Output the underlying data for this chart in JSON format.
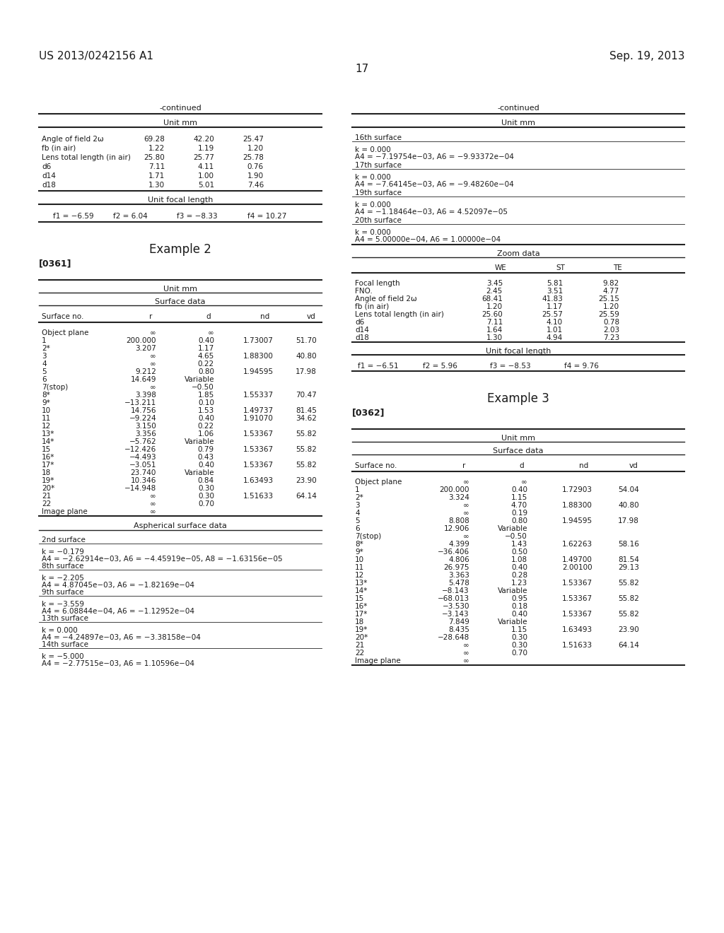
{
  "page_header_left": "US 2013/0242156 A1",
  "page_header_right": "Sep. 19, 2013",
  "page_number": "17",
  "background_color": "#ffffff",
  "text_color": "#1a1a1a",
  "left_continued_rows": [
    [
      "Angle of field 2ω",
      "69.28",
      "42.20",
      "25.47"
    ],
    [
      "fb (in air)",
      "1.22",
      "1.19",
      "1.20"
    ],
    [
      "Lens total length (in air)",
      "25.80",
      "25.77",
      "25.78"
    ],
    [
      "d6",
      "7.11",
      "4.11",
      "0.76"
    ],
    [
      "d14",
      "1.71",
      "1.00",
      "1.90"
    ],
    [
      "d18",
      "1.30",
      "5.01",
      "7.46"
    ]
  ],
  "left_focal_row": "f1 = −6.59       f2 = 6.04       f3 = −8.33       f4 = 10.27",
  "left_surface_rows": [
    [
      "Object plane",
      "∞",
      "∞",
      "",
      ""
    ],
    [
      "1",
      "200.000",
      "0.40",
      "1.73007",
      "51.70"
    ],
    [
      "2*",
      "3.207",
      "1.17",
      "",
      ""
    ],
    [
      "3",
      "∞",
      "4.65",
      "1.88300",
      "40.80"
    ],
    [
      "4",
      "∞",
      "0.22",
      "",
      ""
    ],
    [
      "5",
      "9.212",
      "0.80",
      "1.94595",
      "17.98"
    ],
    [
      "6",
      "14.649",
      "Variable",
      "",
      ""
    ],
    [
      "7(stop)",
      "∞",
      "−0.50",
      "",
      ""
    ],
    [
      "8*",
      "3.398",
      "1.85",
      "1.55337",
      "70.47"
    ],
    [
      "9*",
      "−13.211",
      "0.10",
      "",
      ""
    ],
    [
      "10",
      "14.756",
      "1.53",
      "1.49737",
      "81.45"
    ],
    [
      "11",
      "−9.224",
      "0.40",
      "1.91070",
      "34.62"
    ],
    [
      "12",
      "3.150",
      "0.22",
      "",
      ""
    ],
    [
      "13*",
      "3.356",
      "1.06",
      "1.53367",
      "55.82"
    ],
    [
      "14*",
      "−5.762",
      "Variable",
      "",
      ""
    ],
    [
      "15",
      "−12.426",
      "0.79",
      "1.53367",
      "55.82"
    ],
    [
      "16*",
      "−4.493",
      "0.43",
      "",
      ""
    ],
    [
      "17*",
      "−3.051",
      "0.40",
      "1.53367",
      "55.82"
    ],
    [
      "18",
      "23.740",
      "Variable",
      "",
      ""
    ],
    [
      "19*",
      "10.346",
      "0.84",
      "1.63493",
      "23.90"
    ],
    [
      "20*",
      "−14.948",
      "0.30",
      "",
      ""
    ],
    [
      "21",
      "∞",
      "0.30",
      "1.51633",
      "64.14"
    ],
    [
      "22",
      "∞",
      "0.70",
      "",
      ""
    ],
    [
      "Image plane",
      "∞",
      "",
      "",
      ""
    ]
  ],
  "left_asph_entries": [
    {
      "surface": "2nd surface",
      "lines": [
        "k = −0.179",
        "A4 = −2.62914e−03, A6 = −4.45919e−05, A8 = −1.63156e−05"
      ]
    },
    {
      "surface": "8th surface",
      "lines": [
        "k = −2.205",
        "A4 = 4.87045e−03, A6 = −1.82169e−04"
      ]
    },
    {
      "surface": "9th surface",
      "lines": [
        "k = −3.559",
        "A4 = 6.08844e−04, A6 = −1.12952e−04"
      ]
    },
    {
      "surface": "13th surface",
      "lines": [
        "k = 0.000",
        "A4 = −4.24897e−03, A6 = −3.38158e−04"
      ]
    },
    {
      "surface": "14th surface",
      "lines": [
        "k = −5.000",
        "A4 = −2.77515e−03, A6 = 1.10596e−04"
      ]
    }
  ],
  "right_asph_entries": [
    {
      "surface": "16th surface",
      "lines": [
        "k = 0.000",
        "A4 = −7.19754e−03, A6 = −9.93372e−04"
      ]
    },
    {
      "surface": "17th surface",
      "lines": [
        "k = 0.000",
        "A4 = −7.64145e−03, A6 = −9.48260e−04"
      ]
    },
    {
      "surface": "19th surface",
      "lines": [
        "k = 0.000",
        "A4 = −1.18464e−03, A6 = 4.52097e−05"
      ]
    },
    {
      "surface": "20th surface",
      "lines": [
        "k = 0.000",
        "A4 = 5.00000e−04, A6 = 1.00000e−04"
      ]
    }
  ],
  "zoom_rows": [
    [
      "Focal length",
      "3.45",
      "5.81",
      "9.82"
    ],
    [
      "FNO.",
      "2.45",
      "3.51",
      "4.77"
    ],
    [
      "Angle of field 2ω",
      "68.41",
      "41.83",
      "25.15"
    ],
    [
      "fb (in air)",
      "1.20",
      "1.17",
      "1.20"
    ],
    [
      "Lens total length (in air)",
      "25.60",
      "25.57",
      "25.59"
    ],
    [
      "d6",
      "7.11",
      "4.10",
      "0.78"
    ],
    [
      "d14",
      "1.64",
      "1.01",
      "2.03"
    ],
    [
      "d18",
      "1.30",
      "4.94",
      "7.23"
    ]
  ],
  "right_focal_row": "f1 = −6.51       f2 = 5.96       f3 = −8.53       f4 = 9.76",
  "right_surface_rows": [
    [
      "Object plane",
      "∞",
      "∞",
      "",
      ""
    ],
    [
      "1",
      "200.000",
      "0.40",
      "1.72903",
      "54.04"
    ],
    [
      "2*",
      "3.324",
      "1.15",
      "",
      ""
    ],
    [
      "3",
      "∞",
      "4.70",
      "1.88300",
      "40.80"
    ],
    [
      "4",
      "∞",
      "0.19",
      "",
      ""
    ],
    [
      "5",
      "8.808",
      "0.80",
      "1.94595",
      "17.98"
    ],
    [
      "6",
      "12.906",
      "Variable",
      "",
      ""
    ],
    [
      "7(stop)",
      "∞",
      "−0.50",
      "",
      ""
    ],
    [
      "8*",
      "4.399",
      "1.43",
      "1.62263",
      "58.16"
    ],
    [
      "9*",
      "−36.406",
      "0.50",
      "",
      ""
    ],
    [
      "10",
      "4.806",
      "1.08",
      "1.49700",
      "81.54"
    ],
    [
      "11",
      "26.975",
      "0.40",
      "2.00100",
      "29.13"
    ],
    [
      "12",
      "3.363",
      "0.28",
      "",
      ""
    ],
    [
      "13*",
      "5.478",
      "1.23",
      "1.53367",
      "55.82"
    ],
    [
      "14*",
      "−8.143",
      "Variable",
      "",
      ""
    ],
    [
      "15",
      "−68.013",
      "0.95",
      "1.53367",
      "55.82"
    ],
    [
      "16*",
      "−3.530",
      "0.18",
      "",
      ""
    ],
    [
      "17*",
      "−3.143",
      "0.40",
      "1.53367",
      "55.82"
    ],
    [
      "18",
      "7.849",
      "Variable",
      "",
      ""
    ],
    [
      "19*",
      "8.435",
      "1.15",
      "1.63493",
      "23.90"
    ],
    [
      "20*",
      "−28.648",
      "0.30",
      "",
      ""
    ],
    [
      "21",
      "∞",
      "0.30",
      "1.51633",
      "64.14"
    ],
    [
      "22",
      "∞",
      "0.70",
      "",
      ""
    ],
    [
      "Image plane",
      "∞",
      "",
      "",
      ""
    ]
  ]
}
